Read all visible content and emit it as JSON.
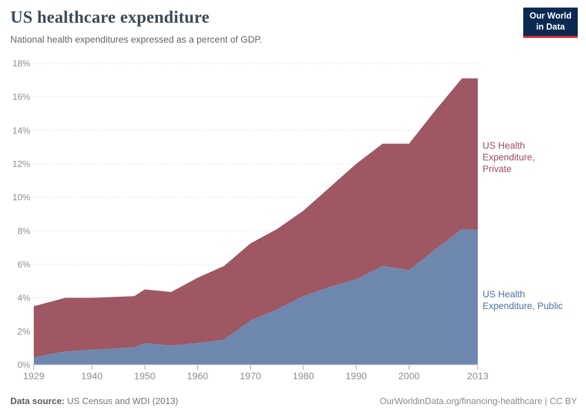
{
  "header": {
    "title": "US healthcare expenditure",
    "subtitle": "National health expenditures expressed as a percent of GDP."
  },
  "logo": {
    "text": "Our World\nin Data",
    "bg_color": "#0c2a51",
    "accent_color": "#d7282f"
  },
  "chart_data": {
    "type": "area",
    "stacked": true,
    "title": "US healthcare expenditure",
    "subtitle": "National health expenditures expressed as a percent of GDP.",
    "xlabel": "",
    "ylabel": "",
    "grid": true,
    "legend_position": "right-annotations",
    "x_range": [
      1929,
      2013
    ],
    "ylim": [
      0,
      18
    ],
    "ytick_suffix": "%",
    "x": [
      1929,
      1935,
      1940,
      1948,
      1950,
      1955,
      1960,
      1965,
      1970,
      1975,
      1980,
      1985,
      1990,
      1995,
      2000,
      2005,
      2010,
      2013
    ],
    "series": [
      {
        "name": "US Health Expenditure, Public",
        "color": "#6e87ae",
        "values": [
          0.45,
          0.8,
          0.9,
          1.05,
          1.3,
          1.15,
          1.3,
          1.5,
          2.65,
          3.3,
          4.1,
          4.65,
          5.1,
          5.9,
          5.65,
          6.9,
          8.1,
          8.05
        ]
      },
      {
        "name": "US Health Expenditure, Private",
        "color": "#9e5763",
        "values": [
          3.05,
          3.2,
          3.1,
          3.05,
          3.2,
          3.2,
          3.9,
          4.4,
          4.6,
          4.8,
          5.1,
          5.95,
          6.9,
          7.3,
          7.55,
          8.3,
          9.0,
          9.05
        ]
      }
    ],
    "totals": [
      3.5,
      4.0,
      4.0,
      4.1,
      4.5,
      4.35,
      5.2,
      5.9,
      7.25,
      8.1,
      9.2,
      10.6,
      12.0,
      13.2,
      13.2,
      15.2,
      17.1,
      17.1
    ],
    "xticks": [
      1929,
      1940,
      1950,
      1960,
      1970,
      1980,
      1990,
      2000,
      2013
    ],
    "yticks": [
      0,
      2,
      4,
      6,
      8,
      10,
      12,
      14,
      16,
      18
    ],
    "series_labels": {
      "private": "US Health\nExpenditure,\nPrivate",
      "public": "US Health\nExpenditure, Public"
    },
    "colors": {
      "public": "#6e87ae",
      "private": "#9e5763",
      "public_label": "#4d71a5",
      "private_label": "#a04a66",
      "grid": "#dddddd",
      "axis": "#cccccc",
      "tick_mark": "#a0a0a0",
      "tick_text": "#8e8e8e"
    }
  },
  "footer": {
    "source_label": "Data source:",
    "source_value": "US Census and WDI (2013)",
    "license": "OurWorldinData.org/financing-healthcare | CC BY"
  }
}
